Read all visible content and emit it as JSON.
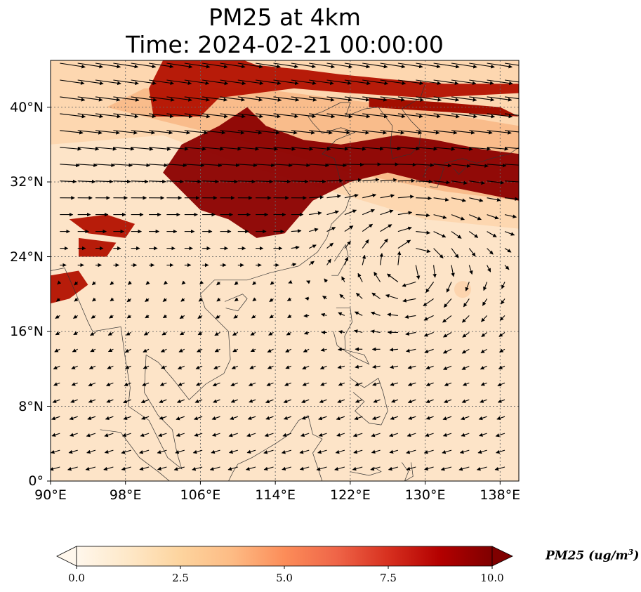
{
  "title": {
    "line1": "PM25 at 4km",
    "line2": "Time: 2024-02-21 00:00:00"
  },
  "map": {
    "lon_range": [
      90,
      140
    ],
    "lat_range": [
      0,
      45
    ],
    "lat_ticks": [
      {
        "value": 40,
        "label": "40°N"
      },
      {
        "value": 32,
        "label": "32°N"
      },
      {
        "value": 24,
        "label": "24°N"
      },
      {
        "value": 16,
        "label": "16°N"
      },
      {
        "value": 8,
        "label": "8°N"
      },
      {
        "value": 0,
        "label": "0°"
      }
    ],
    "lon_ticks": [
      {
        "value": 90,
        "label": "90°E"
      },
      {
        "value": 98,
        "label": "98°E"
      },
      {
        "value": 106,
        "label": "106°E"
      },
      {
        "value": 114,
        "label": "114°E"
      },
      {
        "value": 122,
        "label": "122°E"
      },
      {
        "value": 130,
        "label": "130°E"
      },
      {
        "value": 138,
        "label": "138°E"
      }
    ],
    "gridlines": true,
    "field": "PM25",
    "overlay": "wind vectors",
    "anticyclone_center": [
      128.5,
      23
    ]
  },
  "colorbar": {
    "label_text": "PM25 (ug/m",
    "label_sup": "3",
    "label_close": ")",
    "min": 0,
    "max": 10,
    "extend": "both",
    "colormap": "OrRd",
    "ticks": [
      {
        "value": 0,
        "label": "0.0"
      },
      {
        "value": 2.5,
        "label": "2.5"
      },
      {
        "value": 5,
        "label": "5.0"
      },
      {
        "value": 7.5,
        "label": "7.5"
      },
      {
        "value": 10,
        "label": "10.0"
      }
    ],
    "colors": [
      "#fff7ec",
      "#fee8c8",
      "#fdd49e",
      "#fdbb84",
      "#fc8d59",
      "#ef6548",
      "#d7301f",
      "#b30000",
      "#7f0000"
    ]
  }
}
